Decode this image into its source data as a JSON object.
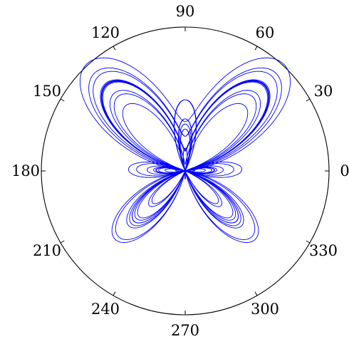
{
  "chart_data": {
    "type": "line",
    "projection": "polar",
    "angle_unit": "degrees",
    "title": "",
    "angular_ticks": [
      0,
      30,
      60,
      90,
      120,
      150,
      180,
      210,
      240,
      270,
      300,
      330
    ],
    "angular_tick_labels": [
      "0",
      "30",
      "60",
      "90",
      "120",
      "150",
      "180",
      "210",
      "240",
      "270",
      "300",
      "330"
    ],
    "grid": false,
    "rlim": [
      0,
      5
    ],
    "curve": {
      "equation": "r = e^{sin(theta)} - 2 cos(4 theta) + sin^5((2 theta - pi) / 24)",
      "theta_range_radians": [
        0,
        75.4
      ],
      "color": "#0000ff"
    },
    "colors": {
      "curve": "#0000ff",
      "axis": "#000000",
      "background": "#ffffff"
    }
  }
}
